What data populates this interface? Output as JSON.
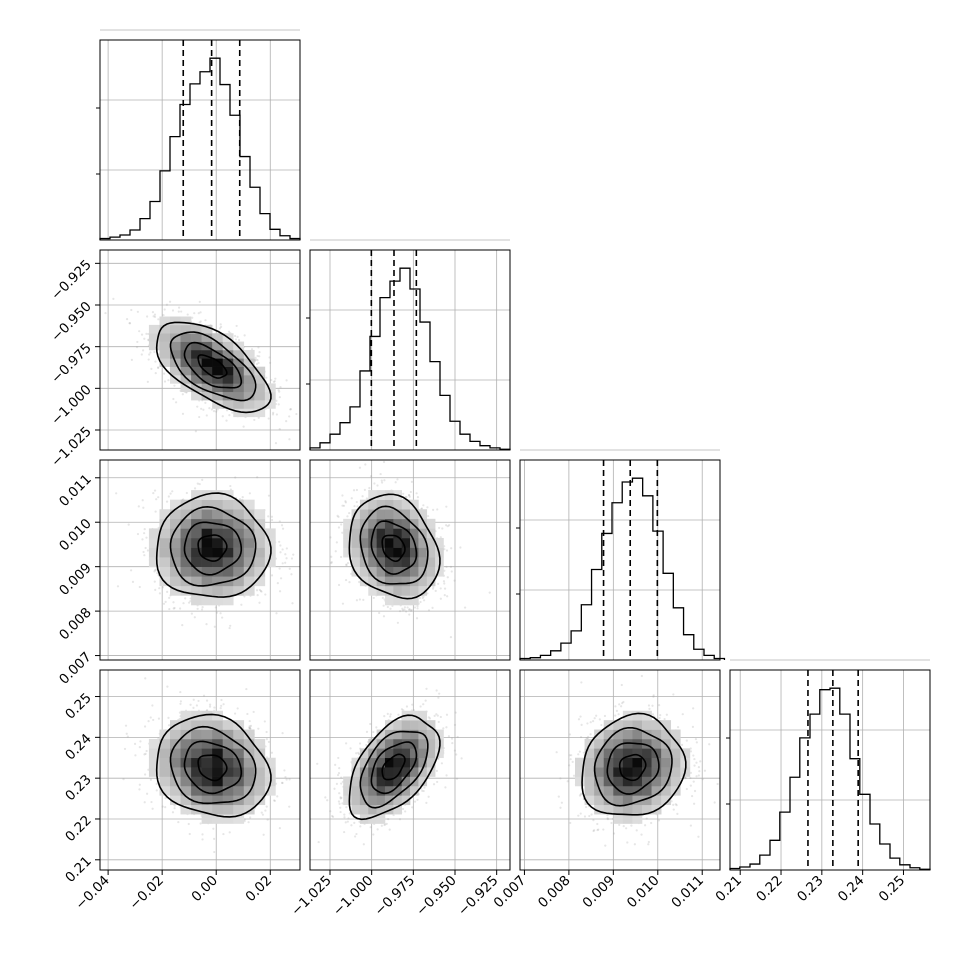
{
  "chart_data": {
    "type": "corner",
    "grid": true,
    "parameters": [
      {
        "id": "p0",
        "range": [
          -0.043,
          0.031
        ],
        "ticks": [
          -0.04,
          -0.02,
          0.0,
          0.02
        ],
        "tick_labels": [
          "−0.04",
          "−0.02",
          "0.00",
          "0.02"
        ],
        "mean": -0.0015,
        "std": 0.0105,
        "quantiles": [
          -0.0122,
          -0.0017,
          0.0087
        ],
        "histogram": {
          "edges": [
            -0.043,
            -0.0393,
            -0.0356,
            -0.0319,
            -0.0282,
            -0.0245,
            -0.0208,
            -0.0171,
            -0.0134,
            -0.0097,
            -0.006,
            -0.0023,
            0.0014,
            0.0051,
            0.0088,
            0.0125,
            0.0162,
            0.0199,
            0.0236,
            0.0273,
            0.031
          ],
          "counts": [
            2,
            4,
            7,
            14,
            30,
            54,
            97,
            145,
            190,
            219,
            236,
            255,
            218,
            175,
            117,
            74,
            37,
            15,
            6,
            2
          ]
        }
      },
      {
        "id": "p1",
        "range": [
          -1.037,
          -0.917
        ],
        "ticks": [
          -1.025,
          -1.0,
          -0.975,
          -0.95,
          -0.925
        ],
        "tick_labels": [
          "−1.025",
          "−1.000",
          "−0.975",
          "−0.950",
          "−0.925"
        ],
        "mean": -0.987,
        "std": 0.0135,
        "quantiles": [
          -1.0002,
          -0.9866,
          -0.9732
        ],
        "histogram": {
          "edges": [
            -1.037,
            -1.031,
            -1.025,
            -1.019,
            -1.013,
            -1.007,
            -1.001,
            -0.995,
            -0.989,
            -0.983,
            -0.977,
            -0.971,
            -0.965,
            -0.959,
            -0.953,
            -0.947,
            -0.941,
            -0.935,
            -0.929,
            -0.923,
            -0.917
          ],
          "counts": [
            3,
            10,
            22,
            38,
            60,
            110,
            158,
            212,
            235,
            253,
            224,
            178,
            123,
            76,
            40,
            22,
            12,
            6,
            3,
            1
          ]
        }
      },
      {
        "id": "p2",
        "range": [
          0.0069,
          0.0114
        ],
        "ticks": [
          0.007,
          0.008,
          0.009,
          0.01,
          0.011
        ],
        "tick_labels": [
          "0.007",
          "0.008",
          "0.009",
          "0.010",
          "0.011"
        ],
        "mean": 0.00943,
        "std": 0.00058,
        "quantiles": [
          0.00878,
          0.00938,
          0.00999
        ],
        "histogram": {
          "edges": [
            0.0069,
            0.00713,
            0.00736,
            0.00759,
            0.00782,
            0.00805,
            0.00828,
            0.00851,
            0.00874,
            0.00897,
            0.0092,
            0.00943,
            0.00966,
            0.00989,
            0.01012,
            0.01035,
            0.01058,
            0.01081,
            0.01104,
            0.01127,
            0.0115
          ],
          "counts": [
            2,
            3,
            6,
            12,
            22,
            38,
            72,
            118,
            165,
            205,
            232,
            237,
            214,
            168,
            113,
            68,
            33,
            14,
            6,
            2
          ]
        }
      },
      {
        "id": "p3",
        "range": [
          0.2075,
          0.2565
        ],
        "ticks": [
          0.21,
          0.22,
          0.23,
          0.24,
          0.25
        ],
        "tick_labels": [
          "0.21",
          "0.22",
          "0.23",
          "0.24",
          "0.25"
        ],
        "mean": 0.2327,
        "std": 0.0062,
        "quantiles": [
          0.2266,
          0.2327,
          0.2389
        ],
        "histogram": {
          "edges": [
            0.2075,
            0.2099,
            0.2124,
            0.2148,
            0.2173,
            0.2197,
            0.2222,
            0.2246,
            0.2271,
            0.2295,
            0.232,
            0.2344,
            0.2369,
            0.2393,
            0.2418,
            0.2442,
            0.2467,
            0.2491,
            0.2516,
            0.254,
            0.2565
          ],
          "counts": [
            2,
            4,
            8,
            20,
            40,
            78,
            125,
            178,
            210,
            243,
            245,
            210,
            150,
            102,
            62,
            35,
            16,
            7,
            3,
            1
          ]
        }
      }
    ],
    "pairs": [
      {
        "x": "p0",
        "y": "p1",
        "correlation": -0.6
      },
      {
        "x": "p0",
        "y": "p2",
        "correlation": 0.0
      },
      {
        "x": "p1",
        "y": "p2",
        "correlation": -0.2
      },
      {
        "x": "p0",
        "y": "p3",
        "correlation": -0.15
      },
      {
        "x": "p1",
        "y": "p3",
        "correlation": 0.5
      },
      {
        "x": "p2",
        "y": "p3",
        "correlation": 0.1
      }
    ],
    "contour_levels_sigma": [
      0.5,
      1.0,
      1.5,
      2.0
    ]
  }
}
